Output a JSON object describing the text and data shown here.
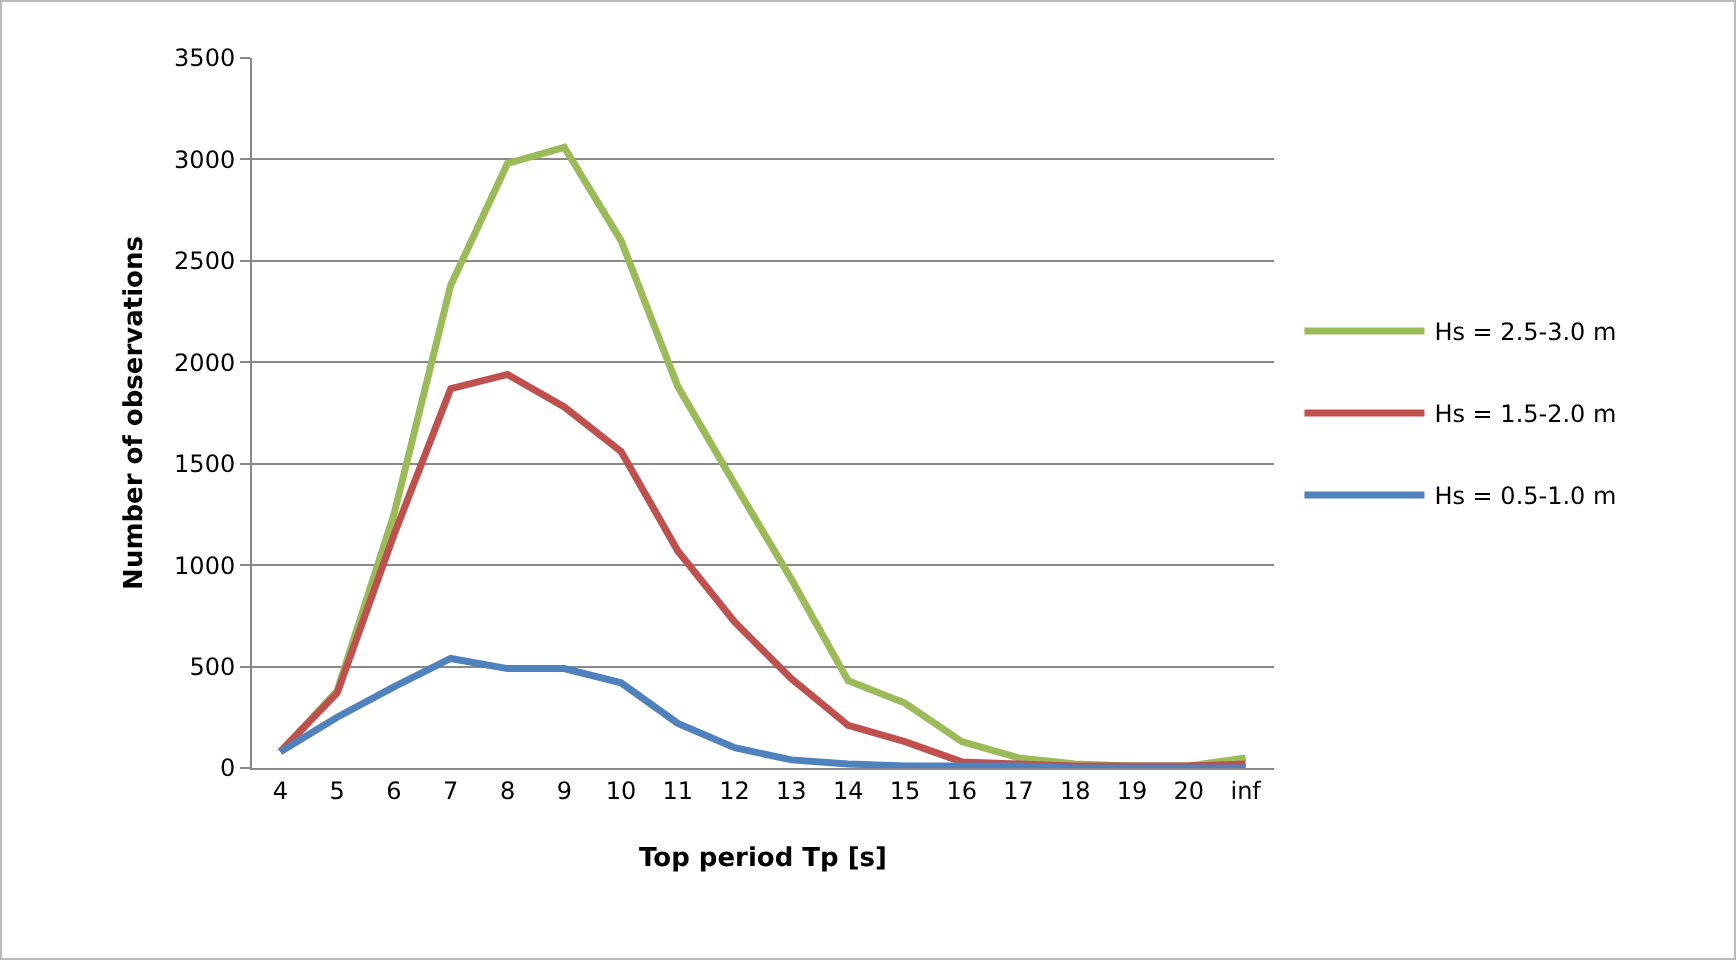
{
  "chart_data": {
    "type": "line",
    "xlabel": "Top period Tp [s]",
    "ylabel": "Number of observations",
    "categories": [
      "4",
      "5",
      "6",
      "7",
      "8",
      "9",
      "10",
      "11",
      "12",
      "13",
      "14",
      "15",
      "16",
      "17",
      "18",
      "19",
      "20",
      "inf"
    ],
    "series": [
      {
        "name": "Hs = 2.5-3.0 m",
        "color": "#9bbb59",
        "values": [
          80,
          380,
          1250,
          2380,
          2980,
          3060,
          2600,
          1880,
          1400,
          930,
          430,
          320,
          130,
          50,
          20,
          10,
          10,
          50
        ]
      },
      {
        "name": "Hs = 1.5-2.0 m",
        "color": "#c0504d",
        "values": [
          80,
          370,
          1150,
          1870,
          1940,
          1780,
          1560,
          1070,
          720,
          440,
          210,
          130,
          30,
          20,
          10,
          10,
          10,
          20
        ]
      },
      {
        "name": "Hs = 0.5-1.0 m",
        "color": "#4f81bd",
        "values": [
          80,
          250,
          400,
          540,
          490,
          490,
          420,
          220,
          100,
          40,
          20,
          10,
          10,
          10,
          0,
          0,
          0,
          0
        ]
      }
    ],
    "ylim": [
      0,
      3500
    ],
    "yticks": [
      0,
      500,
      1000,
      1500,
      2000,
      2500,
      3000,
      3500
    ],
    "grid": "y",
    "legend": "right",
    "marker": "none"
  }
}
